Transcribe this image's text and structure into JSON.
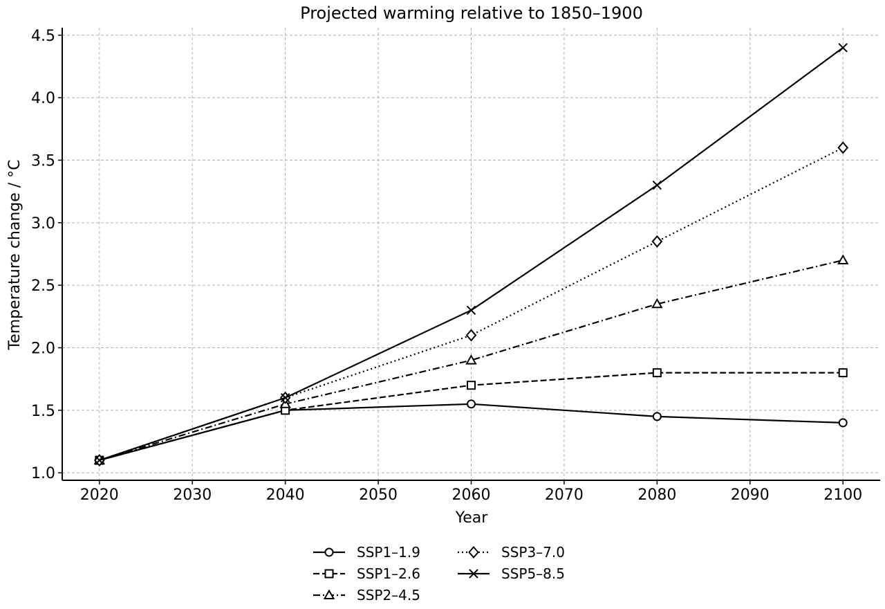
{
  "chart_data": {
    "type": "line",
    "title": "Projected warming relative to 1850–1900",
    "xlabel": "Year",
    "ylabel": "Temperature change / °C",
    "x": [
      2020,
      2040,
      2060,
      2080,
      2100
    ],
    "xlim": [
      2016,
      2104
    ],
    "ylim": [
      0.94,
      4.56
    ],
    "xticks": [
      2020,
      2030,
      2040,
      2050,
      2060,
      2070,
      2080,
      2090,
      2100
    ],
    "yticks": [
      1.0,
      1.5,
      2.0,
      2.5,
      3.0,
      3.5,
      4.0,
      4.5
    ],
    "grid": true,
    "legend_position": "bottom-center",
    "colors": {
      "line": "#000000",
      "grid": "#b0b0b0",
      "marker_fill": "#ffffff"
    },
    "series": [
      {
        "name": "SSP1–1.9",
        "values": [
          1.1,
          1.5,
          1.55,
          1.45,
          1.4
        ],
        "linestyle": "solid",
        "marker": "circle"
      },
      {
        "name": "SSP1–2.6",
        "values": [
          1.1,
          1.5,
          1.7,
          1.8,
          1.8
        ],
        "linestyle": "dashed",
        "marker": "square"
      },
      {
        "name": "SSP2–4.5",
        "values": [
          1.1,
          1.55,
          1.9,
          2.35,
          2.7
        ],
        "linestyle": "dashdot",
        "marker": "triangle"
      },
      {
        "name": "SSP3–7.0",
        "values": [
          1.1,
          1.6,
          2.1,
          2.85,
          3.6
        ],
        "linestyle": "dotted",
        "marker": "diamond"
      },
      {
        "name": "SSP5–8.5",
        "values": [
          1.1,
          1.6,
          2.3,
          3.3,
          4.4
        ],
        "linestyle": "solid",
        "marker": "x"
      }
    ]
  }
}
